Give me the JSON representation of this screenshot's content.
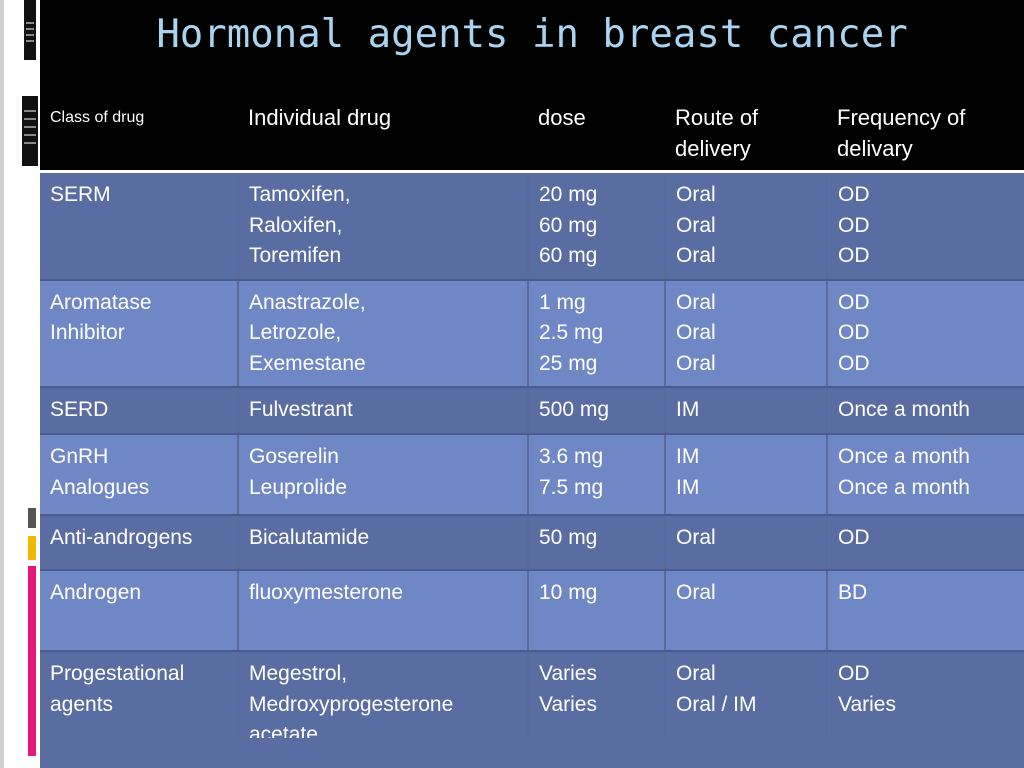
{
  "title": "Hormonal agents in breast cancer",
  "table": {
    "headers": [
      "Class of drug",
      "Individual drug",
      "dose",
      "Route of delivery",
      "Frequency of delivary"
    ],
    "rows": [
      {
        "class": [
          "SERM"
        ],
        "drug": [
          "Tamoxifen,",
          " Raloxifen,",
          " Toremifen"
        ],
        "dose": [
          "20 mg",
          "60 mg",
          "60 mg"
        ],
        "route": [
          "Oral",
          "Oral",
          "Oral"
        ],
        "freq": [
          "OD",
          "OD",
          "OD"
        ]
      },
      {
        "class": [
          "Aromatase",
          "Inhibitor"
        ],
        "drug": [
          "Anastrazole,",
          "Letrozole,",
          "Exemestane"
        ],
        "dose": [
          "1 mg",
          "2.5 mg",
          "25 mg"
        ],
        "route": [
          "Oral",
          "Oral",
          "Oral"
        ],
        "freq": [
          "OD",
          "OD",
          "OD"
        ]
      },
      {
        "class": [
          "SERD"
        ],
        "drug": [
          "Fulvestrant"
        ],
        "dose": [
          "500 mg"
        ],
        "route": [
          "IM"
        ],
        "freq": [
          "Once a month"
        ]
      },
      {
        "class": [
          "GnRH",
          "Analogues"
        ],
        "drug": [
          "Goserelin",
          "Leuprolide"
        ],
        "dose": [
          "3.6 mg",
          "7.5 mg"
        ],
        "route": [
          "IM",
          "IM"
        ],
        "freq": [
          "Once a month",
          "Once a month"
        ]
      },
      {
        "class": [
          "Anti-androgens"
        ],
        "drug": [
          "Bicalutamide"
        ],
        "dose": [
          "50 mg"
        ],
        "route": [
          "Oral"
        ],
        "freq": [
          "OD"
        ]
      },
      {
        "class": [
          "Androgen"
        ],
        "drug": [
          "fluoxymesterone"
        ],
        "dose": [
          "10 mg"
        ],
        "route": [
          "Oral"
        ],
        "freq": [
          "BD"
        ]
      },
      {
        "class": [
          "Progestational",
          "agents"
        ],
        "drug": [
          "Megestrol,",
          "Medroxyprogesterone",
          "acetate"
        ],
        "dose": [
          "Varies",
          "Varies"
        ],
        "route": [
          "Oral",
          "Oral / IM"
        ],
        "freq": [
          "OD",
          "Varies"
        ]
      }
    ]
  },
  "colors": {
    "row_dark": "#5a6da3",
    "row_light": "#6f87c4",
    "title": "#a9d3f0",
    "accent_yellow": "#f5b800",
    "accent_pink": "#e8177a"
  }
}
